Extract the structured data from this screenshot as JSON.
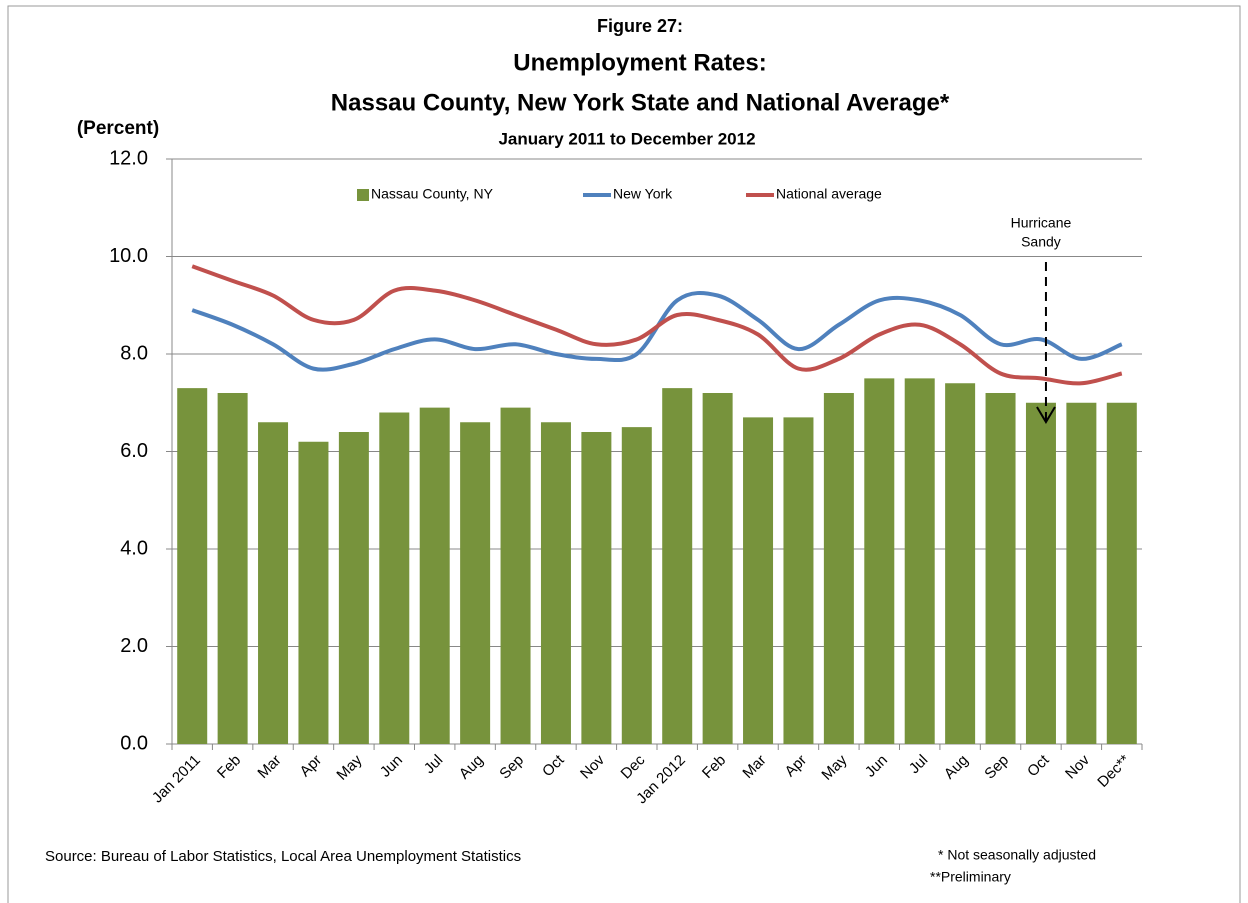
{
  "chart_data": {
    "type": "bar-line",
    "title_lines": [
      "Figure 27:",
      "Unemployment Rates:",
      "Nassau County, New York State and National Average*"
    ],
    "subtitle": "January 2011 to December 2012",
    "y_label": "(Percent)",
    "categories": [
      "Jan 2011",
      "Feb",
      "Mar",
      "Apr",
      "May",
      "Jun",
      "Jul",
      "Aug",
      "Sep",
      "Oct",
      "Nov",
      "Dec",
      "Jan 2012",
      "Feb",
      "Mar",
      "Apr",
      "May",
      "Jun",
      "Jul",
      "Aug",
      "Sep",
      "Oct",
      "Nov",
      "Dec**"
    ],
    "series": [
      {
        "name": "Nassau County, NY",
        "type": "bar",
        "color": "#77933c",
        "values": [
          7.3,
          7.2,
          6.6,
          6.2,
          6.4,
          6.8,
          6.9,
          6.6,
          6.9,
          6.6,
          6.4,
          6.5,
          7.3,
          7.2,
          6.7,
          6.7,
          7.2,
          7.5,
          7.5,
          7.4,
          7.2,
          7.0,
          7.0,
          7.0
        ]
      },
      {
        "name": "New York",
        "type": "line",
        "color": "#4f81bd",
        "values": [
          8.9,
          8.6,
          8.2,
          7.7,
          7.8,
          8.1,
          8.3,
          8.1,
          8.2,
          8.0,
          7.9,
          8.0,
          9.1,
          9.2,
          8.7,
          8.1,
          8.6,
          9.1,
          9.1,
          8.8,
          8.2,
          8.3,
          7.9,
          8.2
        ]
      },
      {
        "name": "National average",
        "type": "line",
        "color": "#c0504d",
        "values": [
          9.8,
          9.5,
          9.2,
          8.7,
          8.7,
          9.3,
          9.3,
          9.1,
          8.8,
          8.5,
          8.2,
          8.3,
          8.8,
          8.7,
          8.4,
          7.7,
          7.9,
          8.4,
          8.6,
          8.2,
          7.6,
          7.5,
          7.4,
          7.6
        ]
      }
    ],
    "ylim": [
      0,
      12
    ],
    "yticks": [
      {
        "value": 0,
        "label": "0.0"
      },
      {
        "value": 2,
        "label": "2.0"
      },
      {
        "value": 4,
        "label": "4.0"
      },
      {
        "value": 6,
        "label": "6.0"
      },
      {
        "value": 8,
        "label": "8.0"
      },
      {
        "value": 10,
        "label": "10.0"
      },
      {
        "value": 12,
        "label": "12.0"
      }
    ],
    "grid": true,
    "legend": "top",
    "annotation": [
      "Hurricane",
      "Sandy"
    ],
    "source": "Source: Bureau of Labor Statistics, Local Area Unemployment Statistics",
    "notes": [
      "* Not seasonally adjusted",
      "**Preliminary"
    ]
  }
}
